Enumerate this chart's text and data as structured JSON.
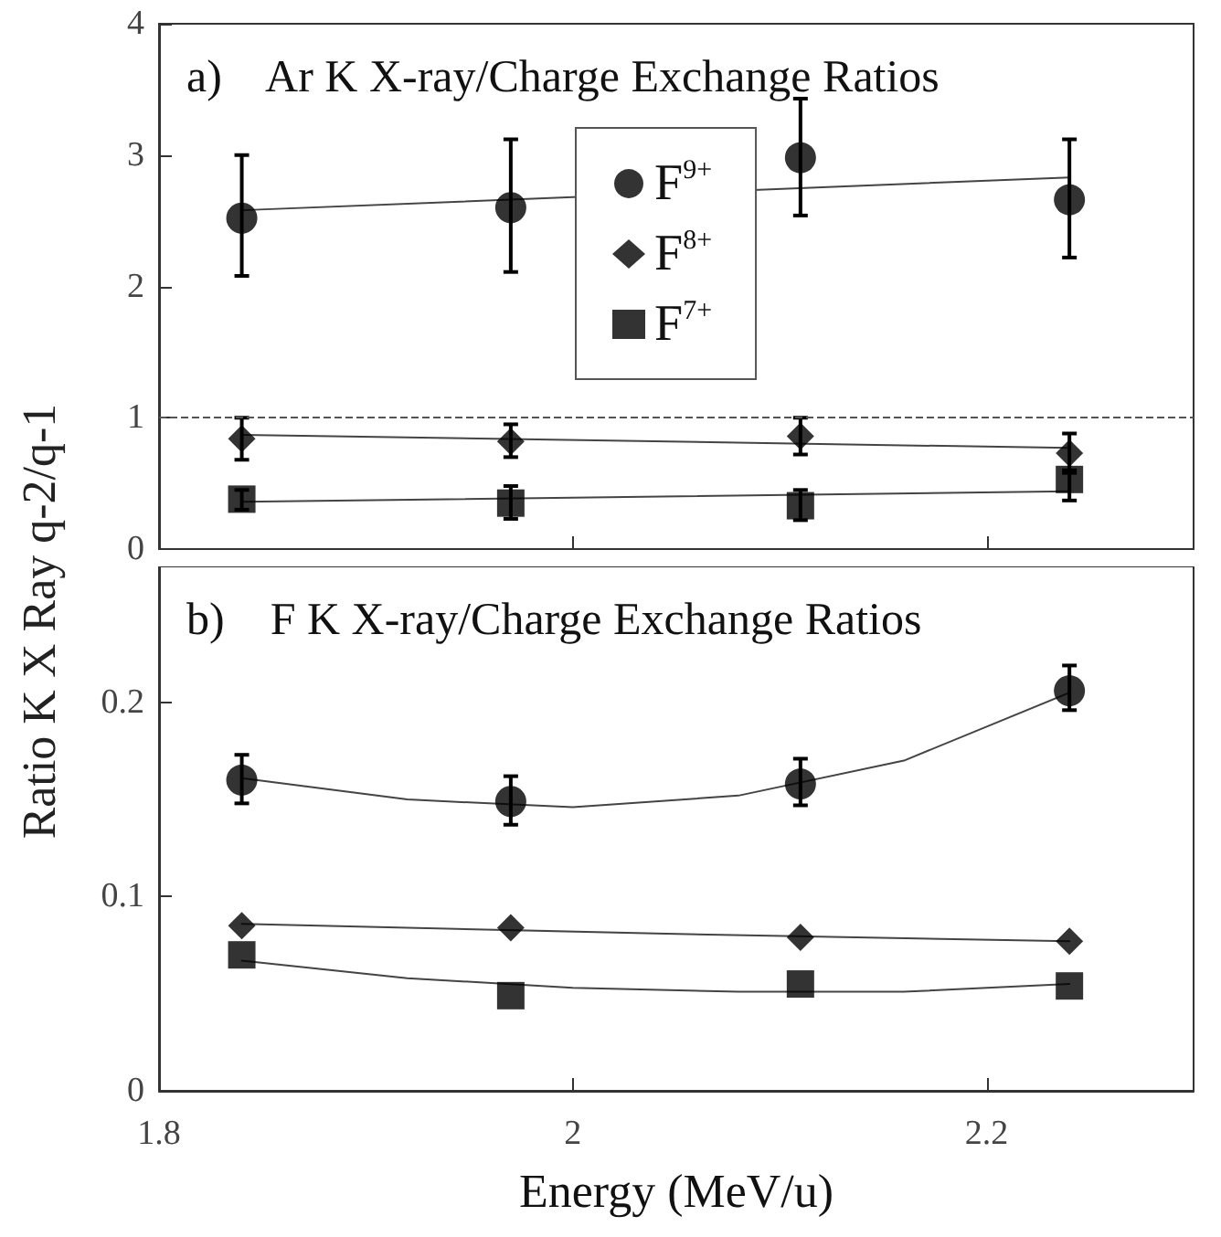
{
  "chart_data": [
    {
      "type": "scatter",
      "title": "a)    Ar K X-ray/Charge Exchange Ratios",
      "ylabel": "Ratio K X Ray q-2/q-1",
      "xlim": [
        1.8,
        2.3
      ],
      "xticks": [
        1.8,
        2,
        2.2
      ],
      "ylim": [
        0,
        4
      ],
      "yticks": [
        0,
        1,
        2,
        3,
        4
      ],
      "tick_labels": "y",
      "grid": false,
      "legend": "top",
      "ref_lines": [
        {
          "axis": "y",
          "value": 1,
          "color": "#555555",
          "line_style": "dashed"
        }
      ],
      "series": [
        {
          "name": "F$^{9+}$",
          "color": "#000000",
          "marker": "circle",
          "x": [
            1.84,
            1.97,
            2.11,
            2.24
          ],
          "values": [
            2.52,
            2.6,
            2.98,
            2.66
          ],
          "errors": [
            [
              2.08,
              3.0
            ],
            [
              2.11,
              3.12
            ],
            [
              2.54,
              3.43
            ],
            [
              2.22,
              3.12
            ]
          ]
        },
        {
          "name": "F$^{8+}$",
          "color": "#000000",
          "marker": "diamond",
          "x": [
            1.84,
            1.97,
            2.11,
            2.24
          ],
          "values": [
            0.84,
            0.82,
            0.86,
            0.73
          ],
          "errors": [
            [
              0.68,
              1.0
            ],
            [
              0.7,
              0.95
            ],
            [
              0.72,
              1.0
            ],
            [
              0.58,
              0.88
            ]
          ]
        },
        {
          "name": "F$^{7+}$",
          "color": "#000000",
          "marker": "square",
          "x": [
            1.84,
            1.97,
            2.11,
            2.24
          ],
          "values": [
            0.38,
            0.35,
            0.33,
            0.53
          ],
          "errors": [
            [
              0.3,
              0.45
            ],
            [
              0.23,
              0.48
            ],
            [
              0.22,
              0.45
            ],
            [
              0.37,
              0.6
            ]
          ]
        },
        {
          "type": "line",
          "color": "#444444",
          "marker": "none",
          "x": [
            1.84,
            2.24
          ],
          "values": [
            2.58,
            2.83
          ]
        },
        {
          "type": "line",
          "color": "#444444",
          "marker": "none",
          "x": [
            1.84,
            2.24
          ],
          "values": [
            0.87,
            0.77
          ]
        },
        {
          "type": "line",
          "color": "#444444",
          "marker": "none",
          "x": [
            1.84,
            2.24
          ],
          "values": [
            0.36,
            0.44
          ]
        }
      ]
    },
    {
      "type": "scatter",
      "title": "b)    F K X-ray/Charge Exchange Ratios",
      "xlabel": "Energy (MeV/u)",
      "xlim": [
        1.8,
        2.3
      ],
      "xticks": [
        1.8,
        2,
        2.2
      ],
      "ylim": [
        0,
        0.27
      ],
      "yticks": [
        0,
        0.1,
        0.2
      ],
      "grid": false,
      "legend": false,
      "series": [
        {
          "color": "#000000",
          "marker": "circle",
          "x": [
            1.84,
            1.97,
            2.11,
            2.24
          ],
          "values": [
            0.16,
            0.149,
            0.158,
            0.206
          ],
          "errors": [
            [
              0.148,
              0.173
            ],
            [
              0.137,
              0.162
            ],
            [
              0.147,
              0.171
            ],
            [
              0.196,
              0.219
            ]
          ]
        },
        {
          "color": "#000000",
          "marker": "diamond",
          "x": [
            1.84,
            1.97,
            2.11,
            2.24
          ],
          "values": [
            0.085,
            0.084,
            0.079,
            0.077
          ]
        },
        {
          "color": "#000000",
          "marker": "square",
          "x": [
            1.84,
            1.97,
            2.11,
            2.24
          ],
          "values": [
            0.07,
            0.049,
            0.055,
            0.054
          ]
        },
        {
          "type": "line",
          "color": "#444444",
          "marker": "none",
          "x": [
            1.84,
            1.92,
            2.0,
            2.08,
            2.16,
            2.24
          ],
          "values": [
            0.161,
            0.15,
            0.146,
            0.152,
            0.17,
            0.205
          ]
        },
        {
          "type": "line",
          "color": "#444444",
          "marker": "none",
          "x": [
            1.84,
            2.04,
            2.24
          ],
          "values": [
            0.086,
            0.081,
            0.077
          ]
        },
        {
          "type": "line",
          "color": "#444444",
          "marker": "none",
          "x": [
            1.84,
            1.92,
            2.0,
            2.08,
            2.16,
            2.24
          ],
          "values": [
            0.067,
            0.058,
            0.053,
            0.051,
            0.051,
            0.055
          ]
        }
      ]
    }
  ]
}
